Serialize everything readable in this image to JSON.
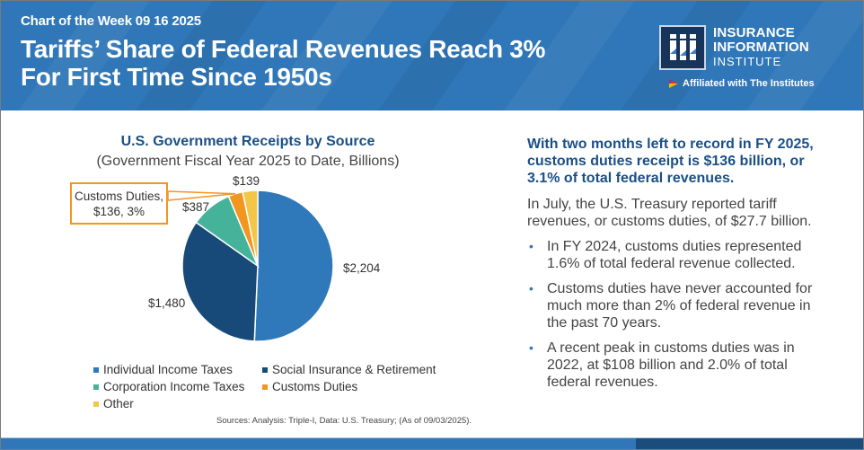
{
  "header": {
    "kicker": "Chart of the Week 09 16 2025",
    "headline_line1": "Tariffs’ Share of Federal Revenues Reach 3%",
    "headline_line2": "For First Time Since 1950s",
    "brand_line1": "INSURANCE",
    "brand_line2": "INFORMATION",
    "brand_line3": "INSTITUTE",
    "affiliation": "Affiliated with The Institutes",
    "logo_icon": "iii-logo-icon"
  },
  "colors": {
    "header_blue": "#2f77b8",
    "title_navy": "#1a4f86",
    "callout_orange": "#f29620"
  },
  "chart_data": {
    "type": "pie",
    "title": "U.S. Government Receipts by Source",
    "subtitle": "(Government Fiscal Year 2025 to Date, Billions)",
    "slices": [
      {
        "name": "Individual Income Taxes",
        "value": 2204,
        "label": "$2,204",
        "color": "#2f78b9"
      },
      {
        "name": "Social Insurance & Retirement",
        "value": 1480,
        "label": "$1,480",
        "color": "#174a78"
      },
      {
        "name": "Corporation Income Taxes",
        "value": 387,
        "label": "$387",
        "color": "#45b39a"
      },
      {
        "name": "Customs Duties",
        "value": 136,
        "label": "Customs Duties, $136, 3%",
        "color": "#f29620"
      },
      {
        "name": "Other",
        "value": 139,
        "label": "$139",
        "color": "#f2c649"
      }
    ],
    "callout": {
      "line1": "Customs Duties,",
      "line2": "$136, 3%"
    },
    "legend": [
      "Individual Income Taxes",
      "Social Insurance & Retirement",
      "Corporation Income Taxes",
      "Customs Duties",
      "Other"
    ],
    "legend_position": "bottom",
    "source": "Sources: Analysis: Triple-I, Data: U.S. Treasury; (As of 09/03/2025)."
  },
  "right_panel": {
    "lead": "With two months left to record in FY 2025, customs duties receipt is $136 billion, or 3.1% of total federal revenues.",
    "paragraph": "In July, the U.S. Treasury reported tariff revenues, or customs duties, of $27.7 billion.",
    "bullet_glyph": "•",
    "bullets": [
      "In FY 2024, customs duties represented 1.6% of total federal revenue collected.",
      "Customs duties have never accounted for much more than 2% of federal revenue in the past 70 years.",
      "A recent peak in customs duties was in 2022, at $108 billion and 2.0% of total federal revenues."
    ]
  }
}
